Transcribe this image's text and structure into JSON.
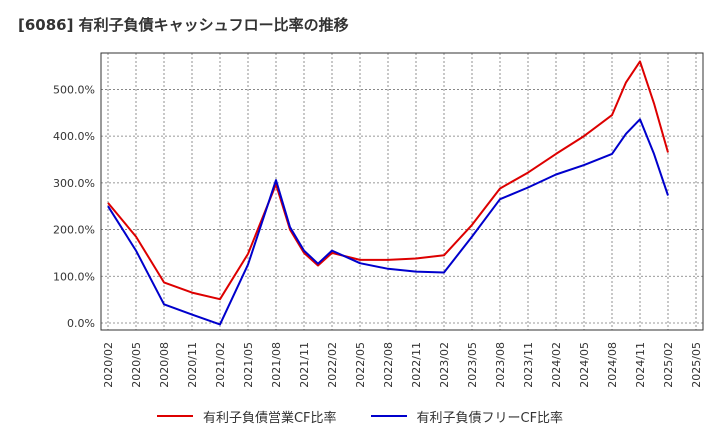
{
  "chart_data": {
    "type": "line",
    "title": "[6086]  有利子負債キャッシュフロー比率の推移",
    "categories": [
      "2020/02",
      "2020/05",
      "2020/08",
      "2020/11",
      "2021/02",
      "2021/05",
      "2021/08",
      "2021/11",
      "2022/02",
      "2022/05",
      "2022/08",
      "2022/11",
      "2023/02",
      "2023/05",
      "2023/08",
      "2023/11",
      "2024/02",
      "2024/05",
      "2024/08",
      "2024/11",
      "2025/02",
      "2025/05"
    ],
    "y_ticks": [
      "0.0%",
      "100.0%",
      "200.0%",
      "300.0%",
      "400.0%",
      "500.0%"
    ],
    "y_tick_values": [
      0,
      100,
      200,
      300,
      400,
      500
    ],
    "ylim": [
      -15,
      578
    ],
    "grid": true,
    "legend_position": "bottom",
    "series": [
      {
        "name": "有利子負債営業CF比率",
        "color": "#dd0000",
        "x": [
          0,
          1,
          2,
          3,
          4,
          5,
          6,
          6.5,
          7,
          7.5,
          8,
          9,
          10,
          11,
          12,
          13,
          14,
          15,
          16,
          17,
          18,
          18.5,
          19,
          19.5,
          20
        ],
        "values": [
          257,
          185,
          87,
          65,
          51,
          148,
          297,
          200,
          150,
          123,
          150,
          135,
          135,
          138,
          145,
          210,
          288,
          322,
          362,
          400,
          445,
          515,
          560,
          470,
          365
        ]
      },
      {
        "name": "有利子負債フリーCF比率",
        "color": "#0000cc",
        "x": [
          0,
          1,
          2,
          3,
          4,
          5,
          6,
          6.5,
          7,
          7.5,
          8,
          9,
          10,
          11,
          12,
          13,
          14,
          15,
          16,
          17,
          18,
          18.5,
          19,
          19.5,
          20
        ],
        "values": [
          250,
          155,
          40,
          18,
          -3,
          125,
          306,
          205,
          155,
          127,
          155,
          128,
          116,
          110,
          108,
          185,
          265,
          290,
          318,
          338,
          362,
          405,
          436,
          362,
          273
        ]
      }
    ]
  }
}
